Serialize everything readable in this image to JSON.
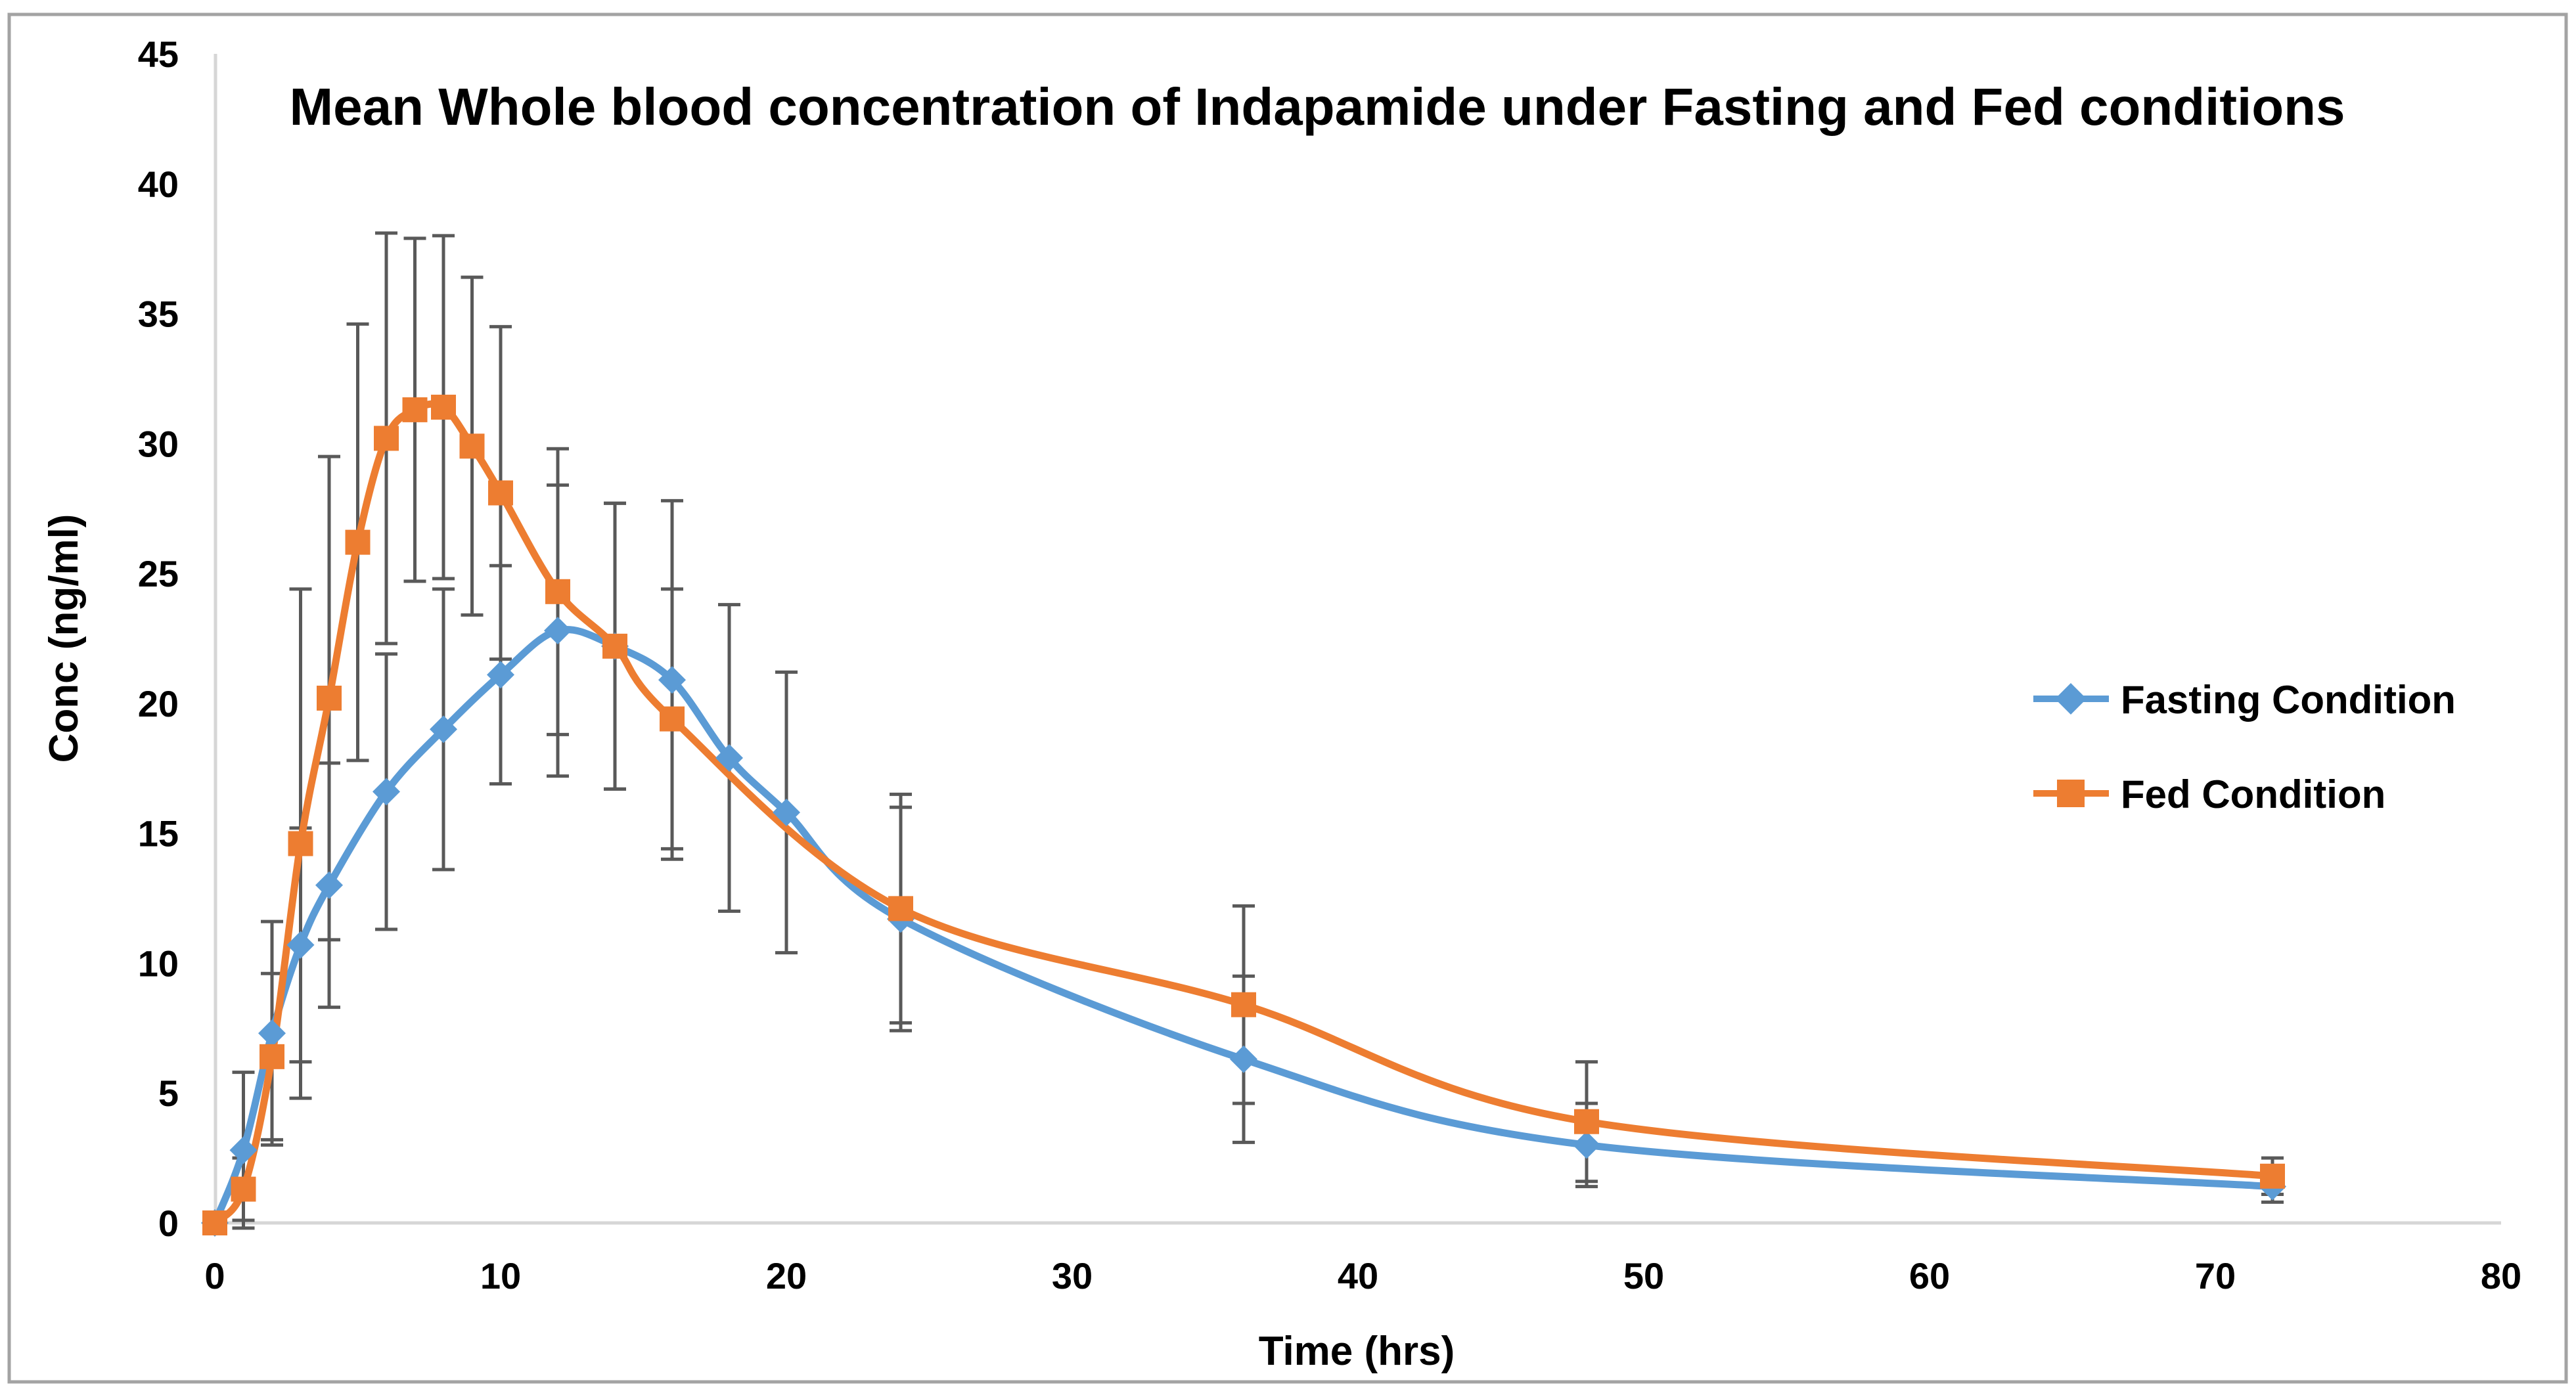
{
  "frame": {
    "background": "#ffffff",
    "border_color": "#a3a3a3"
  },
  "chart_data": {
    "type": "line",
    "title": "Mean Whole blood concentration of Indapamide under Fasting and Fed conditions",
    "xlabel": "Time (hrs)",
    "ylabel": "Conc (ng/ml)",
    "xlim": [
      0,
      80
    ],
    "ylim": [
      0,
      45
    ],
    "xticks": [
      0,
      10,
      20,
      30,
      40,
      50,
      60,
      70,
      80
    ],
    "yticks": [
      0,
      5,
      10,
      15,
      20,
      25,
      30,
      35,
      40,
      45
    ],
    "grid": false,
    "legend_position": "middle-right",
    "error_bars": true,
    "error_bar_color": "#595959",
    "axis_line_color": "#d6d6d6",
    "text_color": "#000000",
    "series": [
      {
        "name": "Fasting Condition",
        "color": "#5b9bd5",
        "marker": "diamond",
        "points": [
          {
            "t": 0,
            "conc": 0,
            "err": 0
          },
          {
            "t": 1,
            "conc": 2.8,
            "err": 3.0
          },
          {
            "t": 2,
            "conc": 7.3,
            "err": 4.3
          },
          {
            "t": 3,
            "conc": 10.7,
            "err": 4.5
          },
          {
            "t": 4,
            "conc": 13.0,
            "err": 4.7
          },
          {
            "t": 6,
            "conc": 16.6,
            "err": 5.3
          },
          {
            "t": 8,
            "conc": 19.0,
            "err": 5.4
          },
          {
            "t": 10,
            "conc": 21.1,
            "err": 4.2
          },
          {
            "t": 12,
            "conc": 22.8,
            "err": 5.6
          },
          {
            "t": 14,
            "conc": 22.2,
            "err": 5.5
          },
          {
            "t": 16,
            "conc": 20.9,
            "err": 6.9
          },
          {
            "t": 18,
            "conc": 17.9,
            "err": 5.9
          },
          {
            "t": 20,
            "conc": 15.8,
            "err": 5.4
          },
          {
            "t": 24,
            "conc": 11.7,
            "err": 4.3
          },
          {
            "t": 36,
            "conc": 6.3,
            "err": 3.2
          },
          {
            "t": 48,
            "conc": 3.0,
            "err": 1.6
          },
          {
            "t": 72,
            "conc": 1.4,
            "err": 0.6
          }
        ]
      },
      {
        "name": "Fed Condition",
        "color": "#ed7d31",
        "marker": "square",
        "points": [
          {
            "t": 0,
            "conc": 0,
            "err": 0
          },
          {
            "t": 1,
            "conc": 1.3,
            "err": 1.2
          },
          {
            "t": 2,
            "conc": 6.4,
            "err": 3.2
          },
          {
            "t": 3,
            "conc": 14.6,
            "err": 9.8
          },
          {
            "t": 4,
            "conc": 20.2,
            "err": 9.3
          },
          {
            "t": 5,
            "conc": 26.2,
            "err": 8.4
          },
          {
            "t": 6,
            "conc": 30.2,
            "err": 7.9
          },
          {
            "t": 7,
            "conc": 31.3,
            "err": 6.6
          },
          {
            "t": 8,
            "conc": 31.4,
            "err": 6.6
          },
          {
            "t": 9,
            "conc": 29.9,
            "err": 6.5
          },
          {
            "t": 10,
            "conc": 28.1,
            "err": 6.4
          },
          {
            "t": 12,
            "conc": 24.3,
            "err": 5.5
          },
          {
            "t": 14,
            "conc": 22.2,
            "err": 5.5
          },
          {
            "t": 16,
            "conc": 19.4,
            "err": 5.0
          },
          {
            "t": 24,
            "conc": 12.1,
            "err": 4.4
          },
          {
            "t": 36,
            "conc": 8.4,
            "err": 3.8
          },
          {
            "t": 48,
            "conc": 3.9,
            "err": 2.3
          },
          {
            "t": 72,
            "conc": 1.8,
            "err": 0.7
          }
        ]
      }
    ]
  }
}
